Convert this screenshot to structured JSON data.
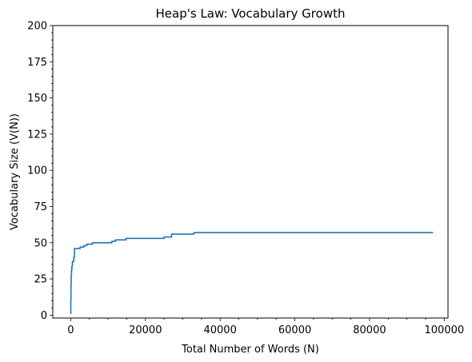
{
  "chart_data": {
    "type": "line",
    "title": "Heap's Law: Vocabulary Growth",
    "xlabel": "Total Number of Words (N)",
    "ylabel": "Vocabulary Size (V(N))",
    "xlim": [
      -4800,
      101000
    ],
    "ylim": [
      -2,
      200
    ],
    "xticks": [
      0,
      20000,
      40000,
      60000,
      80000,
      100000
    ],
    "yticks": [
      0,
      25,
      50,
      75,
      100,
      125,
      150,
      175,
      200
    ],
    "x_minor_step": 5000,
    "y_minor_step": 5,
    "grid": false,
    "legend": "none",
    "series": [
      {
        "color": "#1f77b4",
        "step": true,
        "points": [
          [
            0,
            1
          ],
          [
            20,
            10
          ],
          [
            60,
            20
          ],
          [
            120,
            27
          ],
          [
            200,
            31
          ],
          [
            300,
            34
          ],
          [
            450,
            37
          ],
          [
            800,
            40
          ],
          [
            1000,
            46
          ],
          [
            2500,
            47
          ],
          [
            3500,
            48
          ],
          [
            4300,
            49
          ],
          [
            5800,
            50
          ],
          [
            11000,
            51
          ],
          [
            12000,
            52
          ],
          [
            14800,
            53
          ],
          [
            25000,
            54
          ],
          [
            27000,
            56
          ],
          [
            33000,
            57
          ],
          [
            97000,
            57
          ]
        ]
      }
    ]
  }
}
